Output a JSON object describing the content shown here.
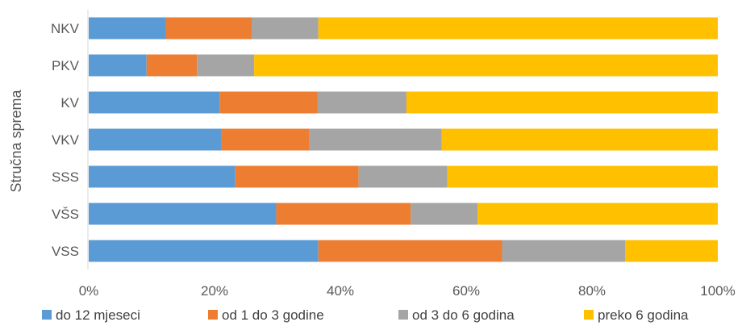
{
  "chart_data": {
    "type": "bar",
    "orientation": "horizontal",
    "stacked": true,
    "percent_stacked": true,
    "ylabel": "Stručna sprema",
    "xlabel": "",
    "categories": [
      "NKV",
      "PKV",
      "KV",
      "VKV",
      "SSS",
      "VŠS",
      "VSS"
    ],
    "x_ticks": [
      "0%",
      "20%",
      "40%",
      "60%",
      "80%",
      "100%"
    ],
    "xlim": [
      0,
      100
    ],
    "grid": false,
    "legend_position": "bottom",
    "series": [
      {
        "name": "do 12 mjeseci",
        "color": "#5B9BD5",
        "values": [
          12.3,
          9.2,
          20.8,
          21.1,
          23.3,
          29.8,
          36.5
        ]
      },
      {
        "name": "od 1 do 3 godine",
        "color": "#ED7D31",
        "values": [
          13.6,
          8.0,
          15.6,
          14.0,
          19.6,
          21.4,
          29.2
        ]
      },
      {
        "name": "od 3 do 6 godina",
        "color": "#A5A5A5",
        "values": [
          10.6,
          9.1,
          14.1,
          21.0,
          14.1,
          10.6,
          19.6
        ]
      },
      {
        "name": "preko 6 godina",
        "color": "#FFC000",
        "values": [
          63.5,
          73.7,
          49.5,
          43.9,
          43.0,
          38.2,
          14.7
        ]
      }
    ]
  }
}
